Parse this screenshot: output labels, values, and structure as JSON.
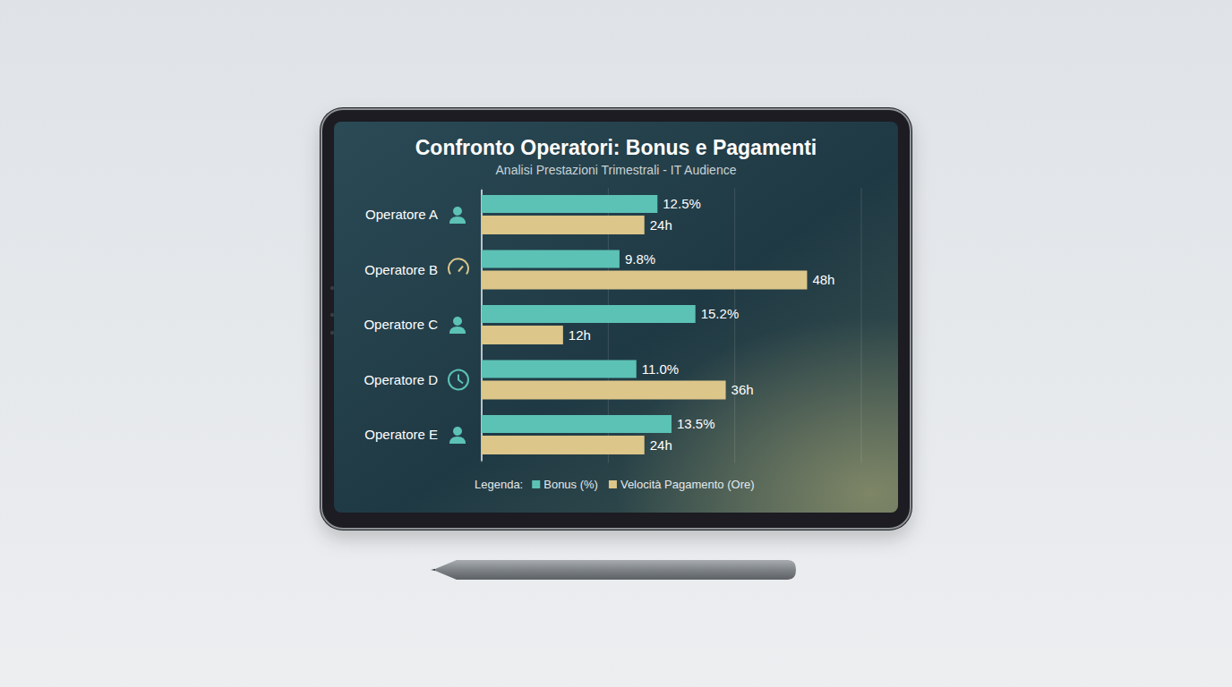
{
  "chart_data": {
    "type": "bar",
    "orientation": "horizontal",
    "title": "Confronto Operatori: Bonus e Pagamenti",
    "subtitle": "Analisi Prestazioni Trimestrali - IT Audience",
    "categories": [
      "Operatore A",
      "Operatore B",
      "Operatore C",
      "Operatore D",
      "Operatore E"
    ],
    "series": [
      {
        "name": "Bonus (%)",
        "color": "#5cc2b5",
        "values": [
          12.5,
          9.8,
          15.2,
          11.0,
          13.5
        ],
        "value_labels": [
          "12.5%",
          "9.8%",
          "15.2%",
          "11.0%",
          "13.5%"
        ]
      },
      {
        "name": "Velocità Pagamento (Ore)",
        "color": "#dcc68a",
        "axis": "y2",
        "values": [
          24,
          48,
          12,
          36,
          24
        ],
        "value_labels": [
          "24h",
          "48h",
          "12h",
          "36h",
          "24h"
        ]
      }
    ],
    "ylim": [
      0,
      27
    ],
    "yticks": [
      0,
      9,
      18,
      27
    ],
    "y2lim": [
      0,
      56
    ],
    "grid": true,
    "tick_labels": false,
    "data_labels": true,
    "legend": "bottom",
    "legend_title": "Legenda:"
  }
}
